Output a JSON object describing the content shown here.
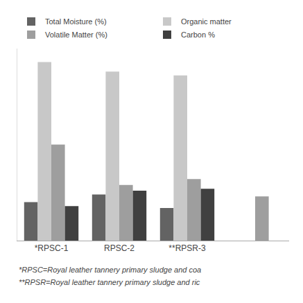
{
  "chart_data": {
    "type": "bar",
    "categories": [
      "*RPSC-1",
      "RPSC-2",
      "**RPSR-3",
      null
    ],
    "series": [
      {
        "name": "Total Moisture (%)",
        "color": "#636363",
        "values": [
          20,
          24,
          17,
          0
        ]
      },
      {
        "name": "Organic matter",
        "color": "#c8c8c8",
        "values": [
          93,
          88,
          86,
          0
        ]
      },
      {
        "name": "Volatile Matter (%)",
        "color": "#9e9e9e",
        "values": [
          50,
          29,
          32,
          23
        ]
      },
      {
        "name": "Carbon %",
        "color": "#404040",
        "values": [
          18,
          26,
          27,
          0
        ]
      }
    ],
    "ylim": [
      0,
      100
    ],
    "tick_labels": "x",
    "grid": false,
    "legend": "top",
    "annotations": [
      "*RPSC=Royal leather tannery primary sludge and coa",
      "**RPSR=Royal leather tannery primary sludge and ric"
    ]
  }
}
